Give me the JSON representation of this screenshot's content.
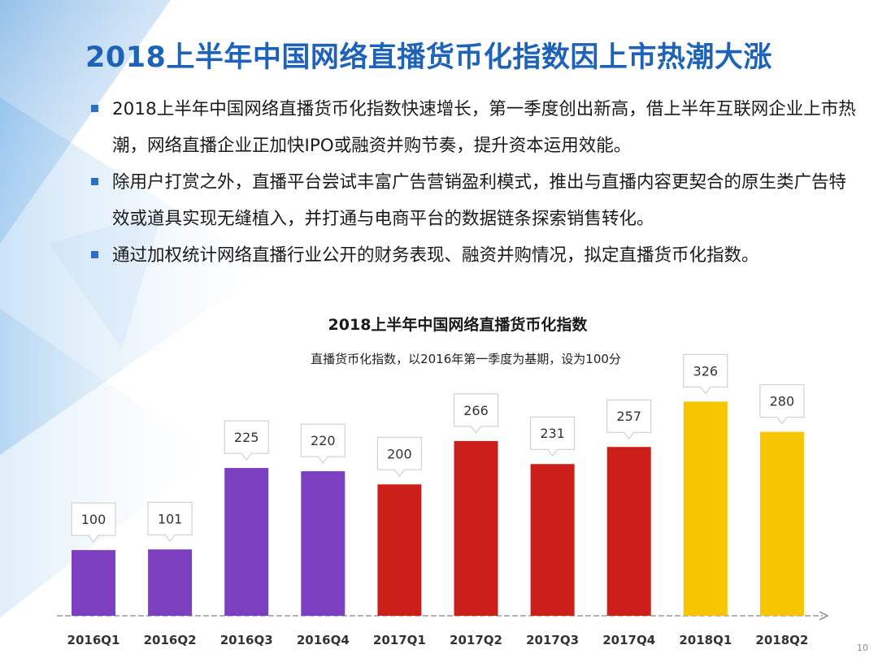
{
  "title": "2018上半年中国网络直播货币化指数因上市热潮大涨",
  "bullets": [
    "2018上半年中国网络直播货币化指数快速增长，第一季度创出新高，借上半年互联网企业上市热潮，网络直播企业正加快IPO或融资并购节奏，提升资本运用效能。",
    "除用户打赏之外，直播平台尝试丰富广告营销盈利模式，推出与直播内容更契合的原生类广告特效或道具实现无缝植入，并打通与电商平台的数据链条探索销售转化。",
    "通过加权统计网络直播行业公开的财务表现、融资并购情况，拟定直播货币化指数。"
  ],
  "page_number": "10",
  "colors": {
    "title": "#1e63b8",
    "bullet": "#2f6fc0",
    "purple": "#7b3fc0",
    "red": "#cc1f1a",
    "yellow": "#f7c600"
  },
  "chart_data": {
    "type": "bar",
    "title": "2018上半年中国网络直播货币化指数",
    "subtitle": "直播货币化指数，以2016年第一季度为基期，设为100分",
    "xlabel": "",
    "ylabel": "",
    "ylim": [
      0,
      350
    ],
    "categories": [
      "2016Q1",
      "2016Q2",
      "2016Q3",
      "2016Q4",
      "2017Q1",
      "2017Q2",
      "2017Q3",
      "2017Q4",
      "2018Q1",
      "2018Q2"
    ],
    "values": [
      100,
      101,
      225,
      220,
      200,
      266,
      231,
      257,
      326,
      280
    ],
    "bar_colors": [
      "#7b3fc0",
      "#7b3fc0",
      "#7b3fc0",
      "#7b3fc0",
      "#cc1f1a",
      "#cc1f1a",
      "#cc1f1a",
      "#cc1f1a",
      "#f7c600",
      "#f7c600"
    ],
    "grid": false,
    "legend": "none"
  }
}
